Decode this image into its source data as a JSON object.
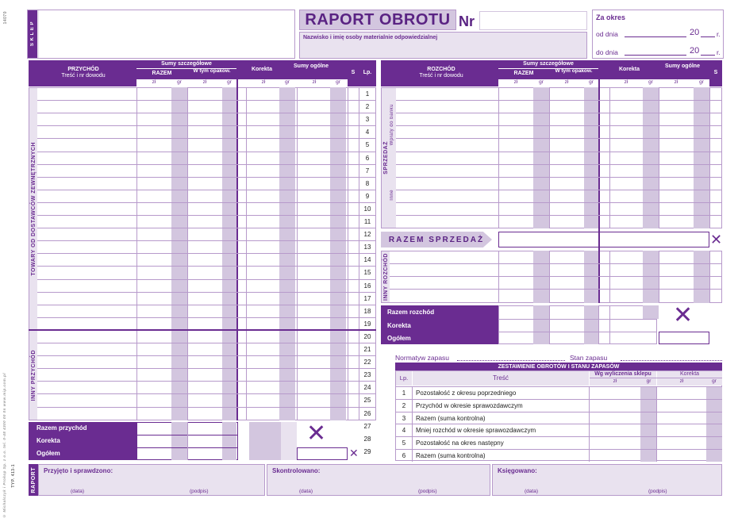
{
  "header": {
    "shop_label": "S K L E P",
    "title": "RAPORT OBROTU",
    "nr_label": "Nr",
    "person_label": "Nazwisko i imię osoby materialnie odpowiedzialnej",
    "period_label": "Za okres",
    "from_label": "od dnia",
    "to_label": "do dnia",
    "year_prefix": "20",
    "year_suffix": "r."
  },
  "left_table": {
    "income_header": "PRZYCHÓD",
    "income_sub": "Treść i nr dowodu",
    "detail_sums": "Sumy szczegółowe",
    "total_col": "RAZEM",
    "pack_col": "W tym opakow.",
    "correction": "Korekta",
    "general_sums": "Sumy ogólne",
    "s_col": "S",
    "lp_col": "Lp.",
    "zl": "zł",
    "gr": "gr",
    "section_goods": "TOWARY OD DOSTAWCÓW ZEWNĘTRZNYCH",
    "section_other": "INNY PRZYCHÓD",
    "total_income": "Razem przychód",
    "correction_row": "Korekta",
    "grand_total": "Ogółem"
  },
  "row_numbers": [
    "1",
    "2",
    "3",
    "4",
    "5",
    "6",
    "7",
    "8",
    "9",
    "10",
    "11",
    "12",
    "13",
    "14",
    "15",
    "16",
    "17",
    "18",
    "19",
    "20",
    "21",
    "22",
    "23",
    "24",
    "25",
    "26",
    "27",
    "28",
    "29"
  ],
  "right_table": {
    "expense_header": "ROZCHÓD",
    "expense_sub": "Treść i nr dowodu",
    "detail_sums": "Sumy szczegółowe",
    "total_col": "RAZEM",
    "pack_col": "W tym opakow.",
    "correction": "Korekta",
    "general_sums": "Sumy ogólne",
    "s_col": "S",
    "sales_label": "SPRZEDAŻ",
    "bank_label": "Wpłaty do banku",
    "other_label": "Inne",
    "total_sales": "RAZEM SPRZEDAŻ",
    "other_expense": "INNY ROZCHÓD",
    "total_expense": "Razem rozchód",
    "correction_row": "Korekta",
    "grand_total": "Ogółem"
  },
  "stock": {
    "normative": "Normatyw zapasu",
    "state": "Stan zapasu",
    "title": "ZESTAWIENIE OBROTÓW I STANU ZAPASÓW",
    "lp": "Lp.",
    "content": "Treść",
    "by_shop": "Wg wyliczenia sklepu",
    "correction": "Korekta",
    "zl": "zł",
    "gr": "gr",
    "rows": [
      {
        "lp": "1",
        "text": "Pozostałość z okresu poprzedniego"
      },
      {
        "lp": "2",
        "text": "Przychód w okresie sprawozdawczym"
      },
      {
        "lp": "3",
        "text": "Razem (suma kontrolna)"
      },
      {
        "lp": "4",
        "text": "Mniej rozchód w okresie sprawozdawczym"
      },
      {
        "lp": "5",
        "text": "Pozostałość na okres następny"
      },
      {
        "lp": "6",
        "text": "Razem (suma kontrolna)"
      }
    ]
  },
  "footer": {
    "raport": "RAPORT",
    "received": "Przyjęto i sprawdzono:",
    "checked": "Skontrolowano:",
    "booked": "Księgowano:",
    "date": "(data)",
    "signature": "(podpis)",
    "type": "TYP. 413-1",
    "brand_side": "© Michalczyk i Prokop  Sp. z o.o.  tel. 0-48 4300 00 0n  www.mip.com.pl",
    "code": "14070"
  },
  "colors": {
    "accent": "#6a2c91",
    "light": "#e9e2ef",
    "mid": "#d3c6df"
  }
}
